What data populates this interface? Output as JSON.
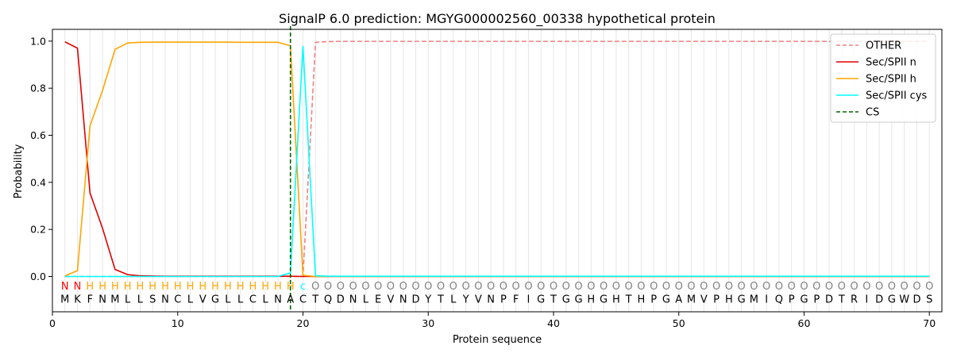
{
  "chart_data": {
    "type": "line",
    "title": "SignalP 6.0 prediction: MGYG000002560_00338 hypothetical protein",
    "xlabel": "Protein sequence",
    "ylabel": "Probability",
    "xlim": [
      0,
      71
    ],
    "ylim": [
      -0.15,
      1.05
    ],
    "xticks": [
      0,
      10,
      20,
      30,
      40,
      50,
      60,
      70
    ],
    "yticks": [
      0.0,
      0.2,
      0.4,
      0.6,
      0.8,
      1.0
    ],
    "xtick_labels": [
      "0",
      "10",
      "20",
      "30",
      "40",
      "50",
      "60",
      "70"
    ],
    "ytick_labels": [
      "0.0",
      "0.2",
      "0.4",
      "0.6",
      "0.8",
      "1.0"
    ],
    "grid": "vertical lines at each residue",
    "legend_position": "top-right",
    "sequence": [
      "M",
      "K",
      "F",
      "N",
      "M",
      "L",
      "L",
      "S",
      "N",
      "C",
      "L",
      "V",
      "G",
      "L",
      "L",
      "C",
      "L",
      "N",
      "A",
      "C",
      "T",
      "Q",
      "D",
      "N",
      "L",
      "E",
      "V",
      "N",
      "D",
      "Y",
      "T",
      "L",
      "Y",
      "V",
      "N",
      "P",
      "F",
      "I",
      "G",
      "T",
      "G",
      "G",
      "H",
      "G",
      "H",
      "T",
      "H",
      "P",
      "G",
      "A",
      "M",
      "V",
      "P",
      "H",
      "G",
      "M",
      "I",
      "Q",
      "P",
      "G",
      "P",
      "D",
      "T",
      "R",
      "I",
      "D",
      "G",
      "W",
      "D",
      "S"
    ],
    "annotation": [
      "N",
      "N",
      "H",
      "H",
      "H",
      "H",
      "H",
      "H",
      "H",
      "H",
      "H",
      "H",
      "H",
      "H",
      "H",
      "H",
      "H",
      "H",
      "H",
      "C",
      "O",
      "O",
      "O",
      "O",
      "O",
      "O",
      "O",
      "O",
      "O",
      "O",
      "O",
      "O",
      "O",
      "O",
      "O",
      "O",
      "O",
      "O",
      "O",
      "O",
      "O",
      "O",
      "O",
      "O",
      "O",
      "O",
      "O",
      "O",
      "O",
      "O",
      "O",
      "O",
      "O",
      "O",
      "O",
      "O",
      "O",
      "O",
      "O",
      "O",
      "O",
      "O",
      "O",
      "O",
      "O",
      "O",
      "O",
      "O",
      "O",
      "O"
    ],
    "annotation_colors": {
      "N": "#ff0000",
      "H": "#ffa500",
      "C": "#00ffff",
      "O": "#808080"
    },
    "cleavage_site": 19,
    "series": [
      {
        "name": "OTHER",
        "color": "#f08080",
        "dash": true,
        "values": [
          0,
          0,
          0,
          0,
          0,
          0,
          0,
          0,
          0,
          0,
          0,
          0,
          0,
          0,
          0,
          0,
          0,
          0,
          0,
          0,
          0.995,
          0.998,
          0.999,
          0.999,
          0.999,
          0.999,
          0.999,
          0.999,
          0.999,
          0.999,
          0.999,
          0.999,
          0.999,
          0.999,
          0.999,
          0.999,
          0.999,
          0.999,
          0.999,
          0.999,
          0.999,
          0.999,
          0.999,
          0.999,
          0.999,
          0.999,
          0.999,
          0.999,
          0.999,
          0.999,
          0.999,
          0.999,
          0.999,
          0.999,
          0.999,
          0.999,
          0.999,
          0.999,
          0.999,
          0.999,
          0.999,
          0.999,
          0.999,
          0.999,
          0.999,
          0.999,
          0.999,
          0.999,
          0.999,
          0.999
        ]
      },
      {
        "name": "Sec/SPII n",
        "color": "#e00000",
        "dash": false,
        "values": [
          0.997,
          0.97,
          0.355,
          0.205,
          0.03,
          0.008,
          0.003,
          0.002,
          0.001,
          0.001,
          0.001,
          0.001,
          0.001,
          0.001,
          0.001,
          0.001,
          0.001,
          0.001,
          0.001,
          0,
          0,
          0,
          0,
          0,
          0,
          0,
          0,
          0,
          0,
          0,
          0,
          0,
          0,
          0,
          0,
          0,
          0,
          0,
          0,
          0,
          0,
          0,
          0,
          0,
          0,
          0,
          0,
          0,
          0,
          0,
          0,
          0,
          0,
          0,
          0,
          0,
          0,
          0,
          0,
          0,
          0,
          0,
          0,
          0,
          0,
          0,
          0,
          0,
          0,
          0
        ]
      },
      {
        "name": "Sec/SPII h",
        "color": "#ffa500",
        "dash": false,
        "values": [
          0.002,
          0.025,
          0.64,
          0.79,
          0.965,
          0.992,
          0.995,
          0.996,
          0.996,
          0.996,
          0.996,
          0.996,
          0.996,
          0.996,
          0.995,
          0.995,
          0.995,
          0.995,
          0.98,
          0.005,
          0,
          0,
          0,
          0,
          0,
          0,
          0,
          0,
          0,
          0,
          0,
          0,
          0,
          0,
          0,
          0,
          0,
          0,
          0,
          0,
          0,
          0,
          0,
          0,
          0,
          0,
          0,
          0,
          0,
          0,
          0,
          0,
          0,
          0,
          0,
          0,
          0,
          0,
          0,
          0,
          0,
          0,
          0,
          0,
          0,
          0,
          0,
          0,
          0,
          0
        ]
      },
      {
        "name": "Sec/SPII cys",
        "color": "#00ffff",
        "dash": false,
        "values": [
          0,
          0,
          0,
          0,
          0,
          0,
          0,
          0,
          0,
          0,
          0,
          0,
          0,
          0,
          0,
          0,
          0,
          0,
          0.015,
          0.978,
          0.003,
          0.001,
          0.001,
          0.001,
          0.001,
          0.001,
          0.001,
          0.001,
          0.001,
          0.001,
          0.001,
          0.001,
          0.001,
          0.001,
          0.001,
          0.001,
          0.001,
          0.001,
          0.001,
          0.001,
          0.001,
          0.001,
          0.001,
          0.001,
          0.001,
          0.001,
          0.001,
          0.001,
          0.001,
          0.001,
          0.001,
          0.001,
          0.001,
          0.001,
          0.001,
          0.001,
          0.001,
          0.001,
          0.001,
          0.001,
          0.001,
          0.001,
          0.001,
          0.001,
          0.001,
          0.001,
          0.001,
          0.001,
          0.001,
          0.001
        ]
      }
    ],
    "legend": [
      {
        "label": "OTHER",
        "color": "#f08080",
        "dash": true
      },
      {
        "label": "Sec/SPII n",
        "color": "#e00000",
        "dash": false
      },
      {
        "label": "Sec/SPII h",
        "color": "#ffa500",
        "dash": false
      },
      {
        "label": "Sec/SPII cys",
        "color": "#00ffff",
        "dash": false
      },
      {
        "label": "CS",
        "color": "#006400",
        "dash": true
      }
    ]
  }
}
